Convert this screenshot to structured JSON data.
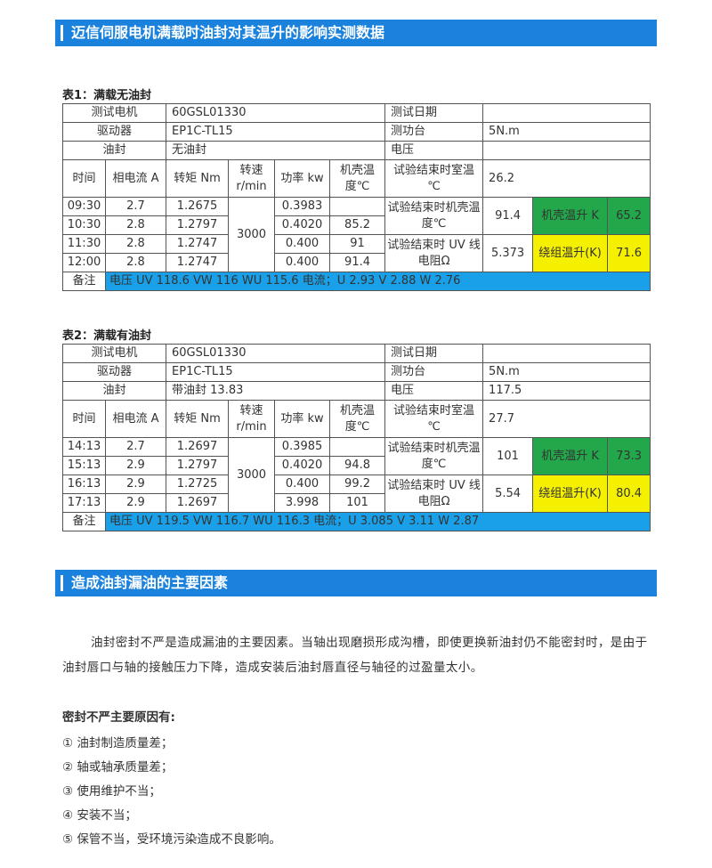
{
  "header1": {
    "title": "迈信伺服电机满载时油封对其温升的影响实测数据"
  },
  "table1": {
    "caption": "表1：满载无油封",
    "rows": [
      [
        "测试电机",
        "60GSL01330",
        "测试日期"
      ],
      [
        "驱动器",
        "EP1C-TL15",
        "测功台",
        "5N.m"
      ],
      [
        "油封",
        "无油封",
        "电压"
      ],
      [
        "时间",
        "相电流 A",
        "转矩 Nm",
        "转速 r/min",
        "功率 kw",
        "机壳温度℃",
        "试验结束时室温　℃",
        "26.2"
      ],
      [
        "09:30",
        "2.7",
        "1.2675",
        "3000",
        "0.3983",
        "试验结束时机壳温度℃",
        "91.4",
        "机壳温升 K",
        "65.2"
      ],
      [
        "10:30",
        "2.8",
        "1.2797",
        "0.4020",
        "85.2"
      ],
      [
        "11:30",
        "2.8",
        "1.2747",
        "0.400",
        "91",
        "试验结束时 UV 线电阻Ω",
        "5.373",
        "绕组温升(K)",
        "71.6"
      ],
      [
        "12:00",
        "2.8",
        "1.2747",
        "0.400",
        "91.4"
      ],
      [
        "备注",
        "电压  UV 118.6    VW 116    WU 115.6    电流；U 2.93    V 2.88    W 2.76"
      ]
    ]
  },
  "table2": {
    "caption": "表2：满载有油封",
    "rows": [
      [
        "测试电机",
        "60GSL01330",
        "测试日期"
      ],
      [
        "驱动器",
        "EP1C-TL15",
        "测功台",
        "5N.m"
      ],
      [
        "油封",
        "带油封  13.83",
        "电压",
        "117.5"
      ],
      [
        "时间",
        "相电流 A",
        "转矩 Nm",
        "转速 r/min",
        "功率 kw",
        "机壳温度℃",
        "试验结束时室温　℃",
        "27.7"
      ],
      [
        "14:13",
        "2.7",
        "1.2697",
        "3000",
        "0.3985",
        "试验结束时机壳温度℃",
        "101",
        "机壳温升 K",
        "73.3"
      ],
      [
        "15:13",
        "2.9",
        "1.2797",
        "0.4020",
        "94.8"
      ],
      [
        "16:13",
        "2.9",
        "1.2725",
        "0.400",
        "99.2",
        "试验结束时 UV 线电阻Ω",
        "5.54",
        "绕组温升(K)",
        "80.4"
      ],
      [
        "17:13",
        "2.9",
        "1.2697",
        "3.998",
        "101"
      ],
      [
        "备注",
        "电压  UV 119.5    VW 116.7    WU 116.3    电流；U 3.085    V 3.11    W 2.87"
      ]
    ]
  },
  "header2": {
    "title": "造成油封漏油的主要因素"
  },
  "paragraph": "油封密封不严是造成漏油的主要因素。当轴出现磨损形成沟槽，即使更换新油封仍不能密封时，是由于油封唇口与轴的接触压力下降，造成安装后油封唇直径与轴径的过盈量太小。",
  "list": {
    "title": "密封不严主要原因有:",
    "items": [
      "① 油封制造质量差；",
      "② 轴或轴承质量差；",
      "③ 使用维护不当；",
      "④ 安装不当；",
      "⑤ 保管不当，受环境污染造成不良影响。"
    ]
  }
}
